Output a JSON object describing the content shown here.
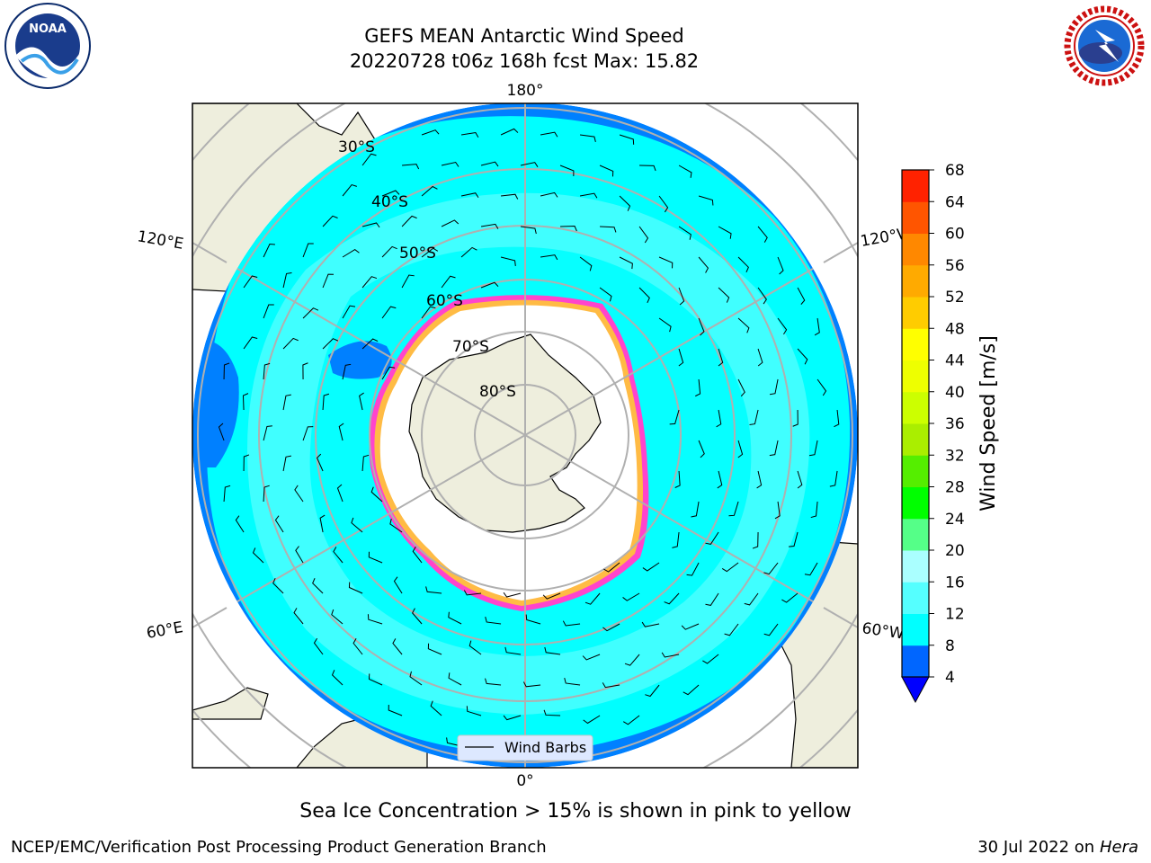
{
  "title": {
    "line1": "GEFS MEAN Antarctic Wind Speed",
    "line2": "20220728 t06z 168h fcst   Max: 15.82"
  },
  "map": {
    "projection": "south-polar-stereographic",
    "lon_labels": {
      "top": "180°",
      "bottom": "0°",
      "left_upper": "120°E",
      "left_lower": "60°E",
      "right_upper": "120°W",
      "right_lower": "60°W"
    },
    "lat_labels": [
      "30°S",
      "40°S",
      "50°S",
      "60°S",
      "70°S",
      "80°S"
    ],
    "legend_label": "Wind Barbs",
    "colors": {
      "land": "#eeeedd",
      "ice": "#ffffff",
      "ocean_dark": "#0080ff",
      "ocean_cyan": "#00ffff",
      "ocean_light": "#55ffff",
      "ice_edge": "#ff44cc",
      "ice_edge2": "#ffbb44",
      "grid": "#b0b0b0"
    }
  },
  "colorbar": {
    "label": "Wind Speed [m/s]",
    "ticks": [
      "4",
      "8",
      "12",
      "16",
      "20",
      "24",
      "28",
      "32",
      "36",
      "40",
      "44",
      "48",
      "52",
      "56",
      "60",
      "64",
      "68"
    ],
    "colors": [
      "#0066ff",
      "#00ffff",
      "#55ffff",
      "#aaffff",
      "#55ff88",
      "#00ff00",
      "#55ee00",
      "#aaee00",
      "#ccff00",
      "#eeff00",
      "#ffff00",
      "#ffcc00",
      "#ffaa00",
      "#ff8800",
      "#ff5500",
      "#ff2200"
    ],
    "under_color": "#0000ff"
  },
  "caption": "Sea Ice Concentration > 15% is shown in pink to yellow",
  "footer": {
    "left": "NCEP/EMC/Verification Post Processing Product Generation Branch",
    "right_prefix": "30 Jul 2022 on ",
    "right_host": "Hera"
  },
  "logos": {
    "noaa": "NOAA",
    "nws": "NATIONAL WEATHER SERVICE"
  }
}
